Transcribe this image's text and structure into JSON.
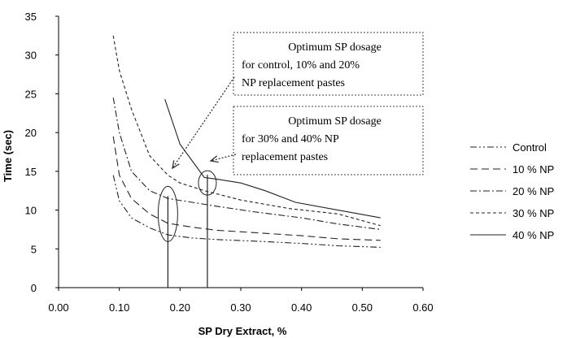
{
  "chart_data": {
    "type": "line",
    "title": "",
    "xlabel": "SP Dry Extract, %",
    "ylabel": "Time (sec)",
    "xlim": [
      0,
      0.6
    ],
    "ylim": [
      0,
      35
    ],
    "x_ticks": [
      "0.00",
      "0.10",
      "0.20",
      "0.30",
      "0.40",
      "0.50",
      "0.60"
    ],
    "y_ticks": [
      "0",
      "5",
      "10",
      "15",
      "20",
      "25",
      "30",
      "35"
    ],
    "grid": false,
    "legend_position": "right",
    "series": [
      {
        "name": "Control",
        "style": "dash-dot-dot",
        "x": [
          0.09,
          0.1,
          0.12,
          0.15,
          0.18,
          0.22,
          0.26,
          0.32,
          0.4,
          0.46,
          0.53
        ],
        "y": [
          14.5,
          11.2,
          9.0,
          7.7,
          6.8,
          6.4,
          6.2,
          6.0,
          5.7,
          5.4,
          5.2
        ]
      },
      {
        "name": "10 % NP",
        "style": "long-dash",
        "x": [
          0.09,
          0.1,
          0.12,
          0.15,
          0.18,
          0.22,
          0.26,
          0.32,
          0.4,
          0.46,
          0.53
        ],
        "y": [
          19.5,
          14.5,
          11.5,
          9.5,
          8.3,
          7.8,
          7.4,
          7.1,
          6.7,
          6.3,
          6.1
        ]
      },
      {
        "name": "20 % NP",
        "style": "dash-dot",
        "x": [
          0.09,
          0.1,
          0.12,
          0.15,
          0.18,
          0.22,
          0.26,
          0.32,
          0.4,
          0.46,
          0.53
        ],
        "y": [
          24.5,
          20.0,
          15.0,
          12.5,
          11.5,
          11.0,
          10.5,
          9.8,
          9.0,
          8.2,
          7.5
        ]
      },
      {
        "name": "30 % NP",
        "style": "short-dash",
        "x": [
          0.09,
          0.1,
          0.12,
          0.15,
          0.18,
          0.2,
          0.24,
          0.3,
          0.38,
          0.46,
          0.53
        ],
        "y": [
          32.5,
          28.0,
          23.0,
          17.0,
          14.5,
          13.5,
          12.5,
          11.3,
          10.2,
          9.5,
          8.0
        ]
      },
      {
        "name": "40 % NP",
        "style": "solid",
        "x": [
          0.175,
          0.2,
          0.24,
          0.26,
          0.3,
          0.34,
          0.39,
          0.46,
          0.53
        ],
        "y": [
          24.3,
          18.5,
          14.2,
          14.0,
          13.5,
          12.5,
          11.0,
          10.0,
          9.0
        ]
      }
    ],
    "optimum_markers": [
      {
        "x": 0.18,
        "y_center": 9.5
      },
      {
        "x": 0.245,
        "y_center": 13.5
      }
    ],
    "annotations": [
      {
        "lines": [
          "Optimum SP dosage",
          "for control, 10% and 20%",
          "NP replacement pastes"
        ]
      },
      {
        "lines": [
          "Optimum SP dosage",
          "for 30% and 40% NP",
          "replacement pastes"
        ]
      }
    ]
  }
}
